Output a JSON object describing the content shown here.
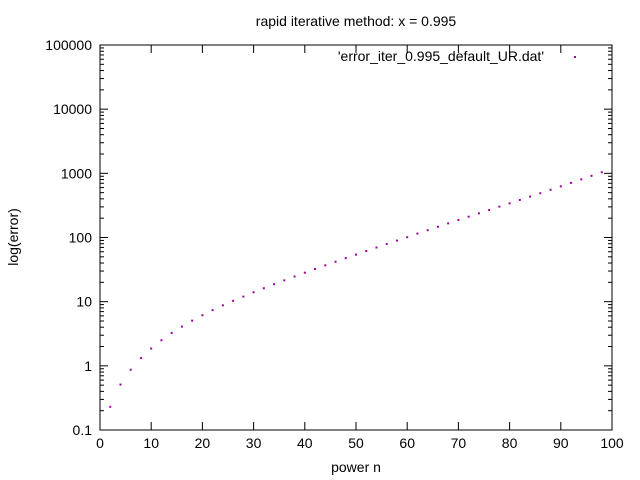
{
  "chart_data": {
    "type": "scatter",
    "title": "rapid iterative method: x = 0.995",
    "xlabel": "power n",
    "ylabel": "log(error)",
    "xlim": [
      0,
      100
    ],
    "ylim": [
      0.1,
      100000
    ],
    "yscale": "log",
    "x_ticks": [
      0,
      10,
      20,
      30,
      40,
      50,
      60,
      70,
      80,
      90,
      100
    ],
    "x_tick_labels": [
      "0",
      "10",
      "20",
      "30",
      "40",
      "50",
      "60",
      "70",
      "80",
      "90",
      "100"
    ],
    "y_ticks": [
      0.1,
      1,
      10,
      100,
      1000,
      10000,
      100000
    ],
    "y_tick_labels": [
      "0.1",
      "1",
      "10",
      "100",
      "1000",
      "10000",
      "100000"
    ],
    "grid": false,
    "legend_position": "top-right",
    "marker_color": "#a000a0",
    "series": [
      {
        "name": "'error_iter_0.995_default_UR.dat'",
        "x": [
          2,
          4,
          6,
          8,
          10,
          12,
          14,
          16,
          18,
          20,
          22,
          24,
          26,
          28,
          30,
          32,
          34,
          36,
          38,
          40,
          42,
          44,
          46,
          48,
          50,
          52,
          54,
          56,
          58,
          60,
          62,
          64,
          66,
          68,
          70,
          72,
          74,
          76,
          78,
          80,
          82,
          84,
          86,
          88,
          90,
          92,
          94,
          96,
          98
        ],
        "y": [
          0.23,
          0.51,
          0.87,
          1.32,
          1.86,
          2.5,
          3.24,
          4.09,
          5.06,
          6.15,
          7.38,
          8.76,
          10.3,
          12.0,
          14.0,
          16.2,
          18.7,
          21.5,
          24.7,
          28.3,
          32.3,
          36.8,
          41.9,
          47.7,
          54.2,
          61.6,
          69.8,
          79.1,
          89.6,
          101,
          115,
          130,
          147,
          166,
          187,
          211,
          238,
          268,
          303,
          341,
          385,
          434,
          490,
          554,
          627,
          710,
          805,
          914,
          1040
        ]
      }
    ]
  }
}
